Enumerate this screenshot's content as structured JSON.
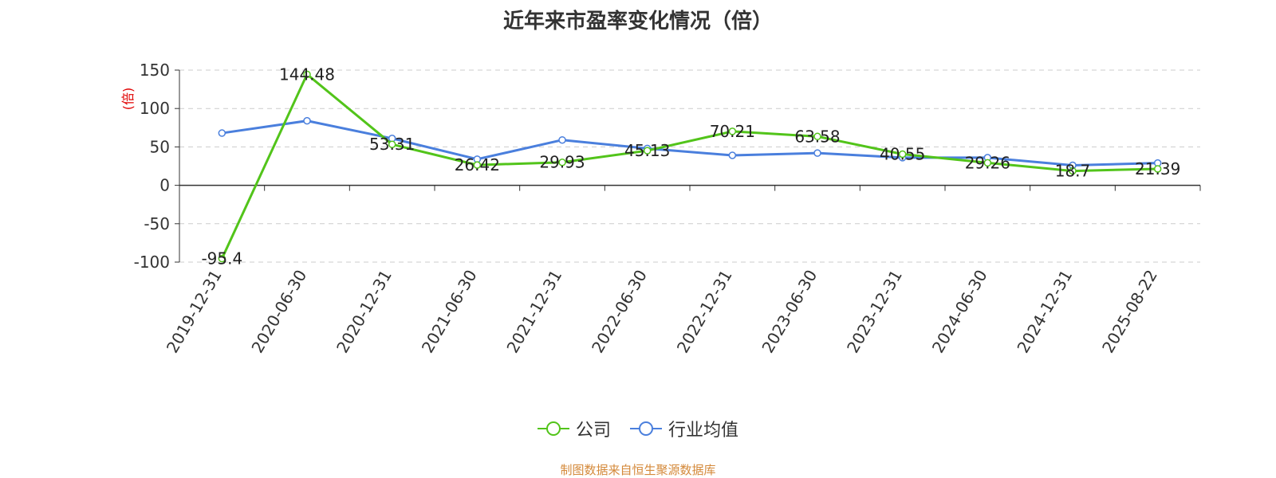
{
  "chart_data": {
    "type": "line",
    "title": "近年来市盈率变化情况（倍）",
    "ylabel": "(倍)",
    "categories": [
      "2019-12-31",
      "2020-06-30",
      "2020-12-31",
      "2021-06-30",
      "2021-12-31",
      "2022-06-30",
      "2022-12-31",
      "2023-06-30",
      "2023-12-31",
      "2024-06-30",
      "2024-12-31",
      "2025-08-22"
    ],
    "ylim": [
      -100,
      150
    ],
    "yticks": [
      150,
      100,
      50,
      0,
      -50,
      -100
    ],
    "grid": true,
    "legend_position": "bottom",
    "series": [
      {
        "name": "公司",
        "color": "#52c41a",
        "values": [
          -95.4,
          144.48,
          53.31,
          26.42,
          29.93,
          45.13,
          70.21,
          63.58,
          40.55,
          29.26,
          18.7,
          21.39
        ],
        "labels": [
          "-95.4",
          "144.48",
          "53.31",
          "26.42",
          "29.93",
          "45.13",
          "70.21",
          "63.58",
          "40.55",
          "29.26",
          "18.7",
          "21.39"
        ]
      },
      {
        "name": "行业均值",
        "color": "#4a7fdd",
        "values": [
          68,
          84,
          61,
          34,
          59,
          48,
          39,
          42,
          36,
          36,
          26,
          29
        ]
      }
    ]
  },
  "source_note": "制图数据来自恒生聚源数据库"
}
